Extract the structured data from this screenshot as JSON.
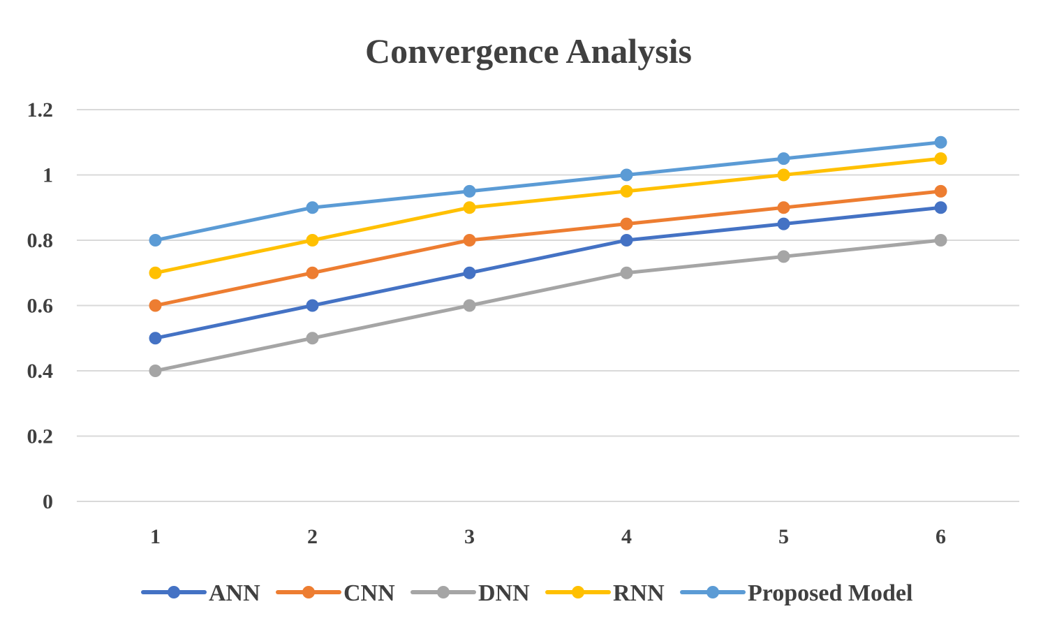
{
  "chart_data": {
    "type": "line",
    "title": "Convergence Analysis",
    "xlabel": "",
    "ylabel": "",
    "categories": [
      "1",
      "2",
      "3",
      "4",
      "5",
      "6"
    ],
    "ylim": [
      0,
      1.2
    ],
    "yticks": [
      {
        "value": 0,
        "label": "0"
      },
      {
        "value": 0.2,
        "label": "0.2"
      },
      {
        "value": 0.4,
        "label": "0.4"
      },
      {
        "value": 0.6,
        "label": "0.6"
      },
      {
        "value": 0.8,
        "label": "0.8"
      },
      {
        "value": 1,
        "label": "1"
      },
      {
        "value": 1.2,
        "label": "1.2"
      }
    ],
    "grid": true,
    "legend_position": "bottom",
    "series": [
      {
        "name": "ANN",
        "color": "#4472C4",
        "values": [
          0.5,
          0.6,
          0.7,
          0.8,
          0.85,
          0.9
        ]
      },
      {
        "name": "CNN",
        "color": "#ED7D31",
        "values": [
          0.6,
          0.7,
          0.8,
          0.85,
          0.9,
          0.95
        ]
      },
      {
        "name": "DNN",
        "color": "#A5A5A5",
        "values": [
          0.4,
          0.5,
          0.6,
          0.7,
          0.75,
          0.8
        ]
      },
      {
        "name": "RNN",
        "color": "#FFC000",
        "values": [
          0.7,
          0.8,
          0.9,
          0.95,
          1.0,
          1.05
        ]
      },
      {
        "name": "Proposed Model",
        "color": "#5B9BD5",
        "values": [
          0.8,
          0.9,
          0.95,
          1.0,
          1.05,
          1.1
        ]
      }
    ]
  }
}
